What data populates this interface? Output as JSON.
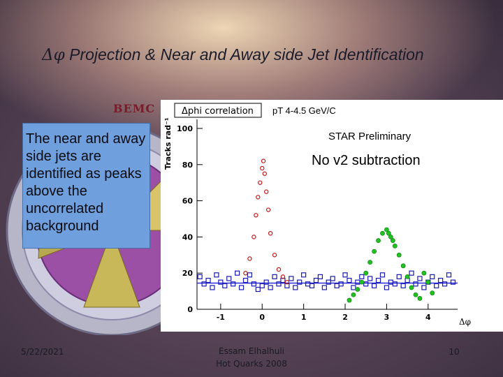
{
  "slide": {
    "title_symbol": "Δφ",
    "title_text": " Projection & Near and Away side Jet Identification",
    "bemc_label": "BEMC",
    "callout_text": "The near and away side jets are identified as peaks above the uncorrelated background",
    "footer": {
      "date": "5/22/2021",
      "author": "Essam Elhalhuli",
      "event": "Hot Quarks 2008",
      "page": "10"
    }
  },
  "chart_data": {
    "type": "scatter",
    "title": "Δphi correlation",
    "annotations": [
      "pT 4-4.5 GeV/C",
      "STAR Preliminary",
      "No v2 subtraction"
    ],
    "ylabel": "Tracks rad⁻¹",
    "xlabel": "Δφ",
    "xlim": [
      -1.57,
      4.71
    ],
    "ylim": [
      0,
      105
    ],
    "x_ticks": [
      -1,
      0,
      1,
      2,
      3,
      4
    ],
    "y_ticks": [
      0,
      20,
      40,
      60,
      80,
      100
    ],
    "baseline": 14.5,
    "colors": {
      "blue": "#1a1ab0",
      "red": "#c21818",
      "green": "#22c222",
      "line": "#2a2ae0"
    },
    "series": [
      {
        "marker": "open-square-blue",
        "x": [
          -1.5,
          -1.4,
          -1.3,
          -1.2,
          -1.1,
          -1.0,
          -0.9,
          -0.8,
          -0.7,
          -0.6,
          -0.5,
          -0.4,
          -0.3,
          -0.2,
          -0.1,
          0.0,
          0.1,
          0.2,
          0.3,
          0.4,
          0.5,
          0.6,
          0.7,
          0.8,
          0.9,
          1.0,
          1.1,
          1.2,
          1.3,
          1.4,
          1.5,
          1.6,
          1.7,
          1.8,
          1.9,
          2.0,
          2.1,
          2.2,
          2.3,
          2.4,
          2.5,
          2.6,
          2.7,
          2.8,
          2.9,
          3.0,
          3.1,
          3.2,
          3.3,
          3.4,
          3.5,
          3.6,
          3.7,
          3.8,
          3.9,
          4.0,
          4.1,
          4.2,
          4.3,
          4.4,
          4.5,
          4.6
        ],
        "y": [
          18,
          14,
          16,
          12,
          19,
          15,
          13,
          17,
          14,
          20,
          12,
          16,
          19,
          14,
          11,
          13,
          15,
          12,
          18,
          14,
          16,
          13,
          17,
          12,
          15,
          19,
          14,
          13,
          16,
          18,
          12,
          15,
          17,
          13,
          14,
          19,
          16,
          12,
          15,
          18,
          14,
          17,
          13,
          16,
          19,
          12,
          15,
          14,
          18,
          13,
          16,
          20,
          14,
          17,
          12,
          15,
          18,
          13,
          16,
          14,
          19,
          15
        ]
      },
      {
        "marker": "open-circle-red",
        "x": [
          -0.4,
          -0.3,
          -0.2,
          -0.15,
          -0.1,
          -0.05,
          0.0,
          0.03,
          0.06,
          0.1,
          0.15,
          0.2,
          0.3,
          0.4,
          0.5,
          0.6
        ],
        "y": [
          20,
          28,
          40,
          52,
          62,
          70,
          78,
          82,
          75,
          65,
          55,
          42,
          30,
          22,
          18,
          15
        ]
      },
      {
        "marker": "filled-circle-green",
        "x": [
          2.1,
          2.2,
          2.3,
          2.4,
          2.5,
          2.6,
          2.7,
          2.8,
          2.9,
          3.0,
          3.05,
          3.1,
          3.15,
          3.2,
          3.3,
          3.4,
          3.5,
          3.6,
          3.7,
          3.8,
          3.9,
          4.0,
          4.1
        ],
        "y": [
          5,
          8,
          11,
          15,
          20,
          26,
          32,
          38,
          42,
          44,
          42,
          40,
          38,
          35,
          30,
          24,
          18,
          12,
          8,
          6,
          20,
          15,
          9
        ]
      }
    ]
  }
}
